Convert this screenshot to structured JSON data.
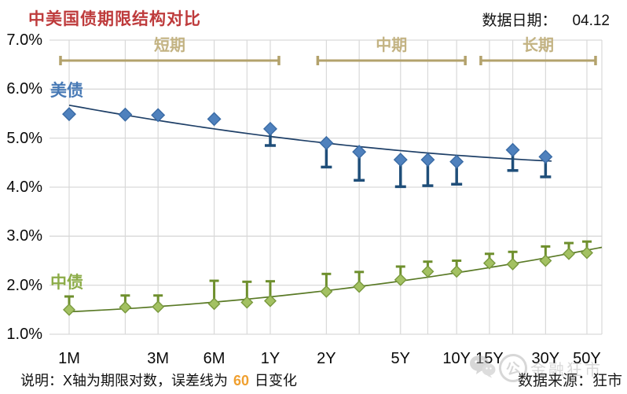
{
  "header": {
    "title": "中美国债期限结构对比",
    "date_label": "数据日期：",
    "date_value": "04.12"
  },
  "chart_data": {
    "type": "scatter",
    "title": "中美国债期限结构对比",
    "data_date": "04.12",
    "x_axis": {
      "scale": "log(期限)",
      "ticks": [
        {
          "label": "1M",
          "months": 1
        },
        {
          "label": "3M",
          "months": 3
        },
        {
          "label": "6M",
          "months": 6
        },
        {
          "label": "1Y",
          "months": 12
        },
        {
          "label": "2Y",
          "months": 24
        },
        {
          "label": "5Y",
          "months": 60
        },
        {
          "label": "10Y",
          "months": 120
        },
        {
          "label": "15Y",
          "months": 180
        },
        {
          "label": "30Y",
          "months": 360
        },
        {
          "label": "50Y",
          "months": 600
        }
      ],
      "gridline_months": [
        1,
        2,
        3,
        6,
        9,
        12,
        24,
        36,
        60,
        84,
        120,
        180,
        240,
        360,
        600
      ]
    },
    "y_axis": {
      "unit": "%",
      "range": [
        1.0,
        7.0
      ],
      "ticks": [
        {
          "label": "7.0%",
          "value": 7.0
        },
        {
          "label": "6.0%",
          "value": 6.0
        },
        {
          "label": "5.0%",
          "value": 5.0
        },
        {
          "label": "4.0%",
          "value": 4.0
        },
        {
          "label": "3.0%",
          "value": 3.0
        },
        {
          "label": "2.0%",
          "value": 2.0
        },
        {
          "label": "1.0%",
          "value": 1.0
        }
      ]
    },
    "error_bar_meaning": "60日变化",
    "series": [
      {
        "name": "美债",
        "marker": "diamond",
        "marker_color": "#4F81BD",
        "marker_edge": "#3A6BA5",
        "trend_color": "#1F4068",
        "error_color": "#1F4E79",
        "label_color": "#4779B5",
        "points": [
          {
            "maturity": "1M",
            "months": 1,
            "yield": 5.49,
            "prev_60d": null
          },
          {
            "maturity": "2M",
            "months": 2,
            "yield": 5.48,
            "prev_60d": null
          },
          {
            "maturity": "3M",
            "months": 3,
            "yield": 5.47,
            "prev_60d": null
          },
          {
            "maturity": "6M",
            "months": 6,
            "yield": 5.39,
            "prev_60d": null
          },
          {
            "maturity": "1Y",
            "months": 12,
            "yield": 5.19,
            "prev_60d": 4.85
          },
          {
            "maturity": "2Y",
            "months": 24,
            "yield": 4.9,
            "prev_60d": 4.41
          },
          {
            "maturity": "3Y",
            "months": 36,
            "yield": 4.72,
            "prev_60d": 4.14
          },
          {
            "maturity": "5Y",
            "months": 60,
            "yield": 4.56,
            "prev_60d": 4.01
          },
          {
            "maturity": "7Y",
            "months": 84,
            "yield": 4.56,
            "prev_60d": 4.03
          },
          {
            "maturity": "10Y",
            "months": 120,
            "yield": 4.52,
            "prev_60d": 4.06
          },
          {
            "maturity": "20Y",
            "months": 240,
            "yield": 4.76,
            "prev_60d": 4.34
          },
          {
            "maturity": "30Y",
            "months": 360,
            "yield": 4.62,
            "prev_60d": 4.21
          }
        ]
      },
      {
        "name": "中债",
        "marker": "diamond",
        "marker_color": "#A3C162",
        "marker_edge": "#79993D",
        "trend_color": "#5A7A26",
        "error_color": "#6E8F2D",
        "label_color": "#8CAC48",
        "points": [
          {
            "maturity": "1M",
            "months": 1,
            "yield": 1.5,
            "prev_60d": 1.77
          },
          {
            "maturity": "2M",
            "months": 2,
            "yield": 1.55,
            "prev_60d": 1.79
          },
          {
            "maturity": "3M",
            "months": 3,
            "yield": 1.56,
            "prev_60d": 1.79
          },
          {
            "maturity": "6M",
            "months": 6,
            "yield": 1.62,
            "prev_60d": 2.09
          },
          {
            "maturity": "9M",
            "months": 9,
            "yield": 1.65,
            "prev_60d": 2.07
          },
          {
            "maturity": "1Y",
            "months": 12,
            "yield": 1.68,
            "prev_60d": 2.08
          },
          {
            "maturity": "2Y",
            "months": 24,
            "yield": 1.87,
            "prev_60d": 2.23
          },
          {
            "maturity": "3Y",
            "months": 36,
            "yield": 1.97,
            "prev_60d": 2.27
          },
          {
            "maturity": "5Y",
            "months": 60,
            "yield": 2.11,
            "prev_60d": 2.38
          },
          {
            "maturity": "7Y",
            "months": 84,
            "yield": 2.28,
            "prev_60d": 2.48
          },
          {
            "maturity": "10Y",
            "months": 120,
            "yield": 2.28,
            "prev_60d": 2.5
          },
          {
            "maturity": "15Y",
            "months": 180,
            "yield": 2.45,
            "prev_60d": 2.64
          },
          {
            "maturity": "20Y",
            "months": 240,
            "yield": 2.43,
            "prev_60d": 2.68
          },
          {
            "maturity": "30Y",
            "months": 360,
            "yield": 2.5,
            "prev_60d": 2.79
          },
          {
            "maturity": "40Y",
            "months": 480,
            "yield": 2.64,
            "prev_60d": 2.86
          },
          {
            "maturity": "50Y",
            "months": 600,
            "yield": 2.66,
            "prev_60d": 2.89
          }
        ]
      }
    ],
    "term_brackets": [
      {
        "label": "短期",
        "from_months": 1,
        "to_months": 12
      },
      {
        "label": "中期",
        "from_months": 24,
        "to_months": 120
      },
      {
        "label": "长期",
        "from_months": 180,
        "to_months": 600
      }
    ],
    "legend_position": "inline-left",
    "grid": true
  },
  "colors": {
    "title": "#BE3B3C",
    "grid": "#D9D9D9",
    "bracket": "#B3A26C",
    "bracket_label": "#C3B383",
    "highlight": "#F0A030"
  },
  "footer": {
    "note_prefix": "说明：X轴为期限对数，误差线为",
    "note_highlight": "60",
    "note_suffix": "日变化",
    "source_label": "数据来源：",
    "source_value": "狂市",
    "watermark_text": "金融狂市",
    "watermark_badge": "公"
  }
}
